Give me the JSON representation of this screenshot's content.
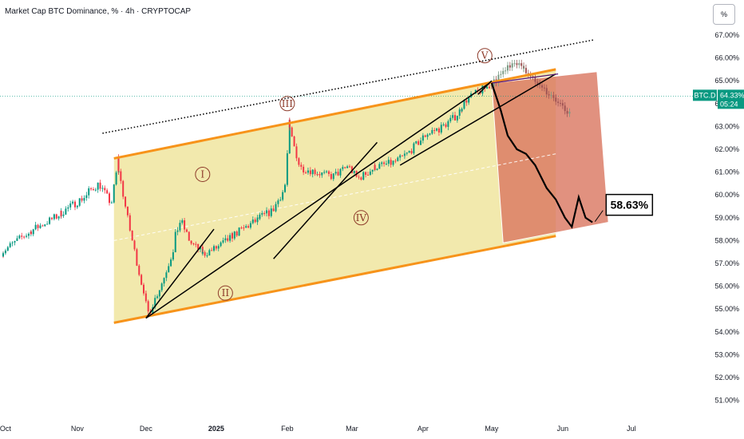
{
  "header": {
    "title": "Market Cap BTC Dominance, % · 4h · CRYPTOCAP",
    "percent_button": "%"
  },
  "price_tag": {
    "symbol": "BTC.D",
    "value": "64.33%",
    "countdown": "05:24",
    "color": "#089981"
  },
  "callout": {
    "label": "58.63%"
  },
  "wave_labels": [
    "I",
    "II",
    "III",
    "IV",
    "V"
  ],
  "colors": {
    "candle_up": "#089981",
    "candle_down": "#f23645",
    "channel_line": "#f7931a",
    "channel_fill": "#e8d76a",
    "projection_fill": "#d9755f",
    "projection_path": "#000000",
    "trend_line": "#000000"
  },
  "chart_data": {
    "type": "candlestick",
    "title": "Market Cap BTC Dominance, % · 4h · CRYPTOCAP",
    "xlabel": "",
    "ylabel": "",
    "ylim": [
      50.5,
      67.4
    ],
    "y_scale": "linear",
    "y_ticks": [
      "51.00%",
      "52.00%",
      "53.00%",
      "54.00%",
      "55.00%",
      "56.00%",
      "57.00%",
      "58.00%",
      "59.00%",
      "60.00%",
      "61.00%",
      "62.00%",
      "63.00%",
      "64.00%",
      "65.00%",
      "66.00%",
      "67.00%"
    ],
    "x_ticks": [
      "Oct",
      "Nov",
      "Dec",
      "2025",
      "Feb",
      "Mar",
      "Apr",
      "May",
      "Jun",
      "Jul"
    ],
    "grid": false,
    "legend": "none",
    "series": [
      {
        "name": "BTC.D",
        "x": [
          "2024-09-30",
          "2024-10-10",
          "2024-10-20",
          "2024-10-28",
          "2024-11-05",
          "2024-11-12",
          "2024-11-17",
          "2024-11-20",
          "2024-11-25",
          "2024-11-30",
          "2024-12-04",
          "2024-12-10",
          "2024-12-18",
          "2024-12-22",
          "2024-12-28",
          "2025-01-03",
          "2025-01-08",
          "2025-01-14",
          "2025-01-20",
          "2025-01-27",
          "2025-02-01",
          "2025-02-03",
          "2025-02-08",
          "2025-02-15",
          "2025-02-22",
          "2025-03-01",
          "2025-03-05",
          "2025-03-12",
          "2025-03-20",
          "2025-03-27",
          "2025-04-04",
          "2025-04-10",
          "2025-04-16",
          "2025-04-22",
          "2025-04-28",
          "2025-05-03",
          "2025-05-06",
          "2025-05-10",
          "2025-05-14",
          "2025-05-18",
          "2025-05-24",
          "2025-05-30",
          "2025-06-05",
          "2025-06-09"
        ],
        "y": [
          57.4,
          58.2,
          58.8,
          59.3,
          59.9,
          60.5,
          59.6,
          61.6,
          58.7,
          56.2,
          54.8,
          56.3,
          58.9,
          57.9,
          57.4,
          57.7,
          58.1,
          58.5,
          58.9,
          59.3,
          60.3,
          63.2,
          61.2,
          61.0,
          60.8,
          61.3,
          60.7,
          61.2,
          61.4,
          61.8,
          62.7,
          62.9,
          63.4,
          64.2,
          64.6,
          64.9,
          65.2,
          65.6,
          65.9,
          65.4,
          64.7,
          64.2,
          63.5,
          63.2
        ]
      },
      {
        "name": "projection",
        "x": [
          "2025-05-01",
          "2025-05-05",
          "2025-05-08",
          "2025-05-12",
          "2025-05-16",
          "2025-05-20",
          "2025-05-25",
          "2025-05-29",
          "2025-06-02",
          "2025-06-05",
          "2025-06-08",
          "2025-06-11",
          "2025-06-14"
        ],
        "y": [
          64.9,
          63.7,
          62.6,
          62.0,
          61.8,
          61.3,
          60.3,
          59.8,
          59.0,
          58.6,
          59.9,
          59.0,
          58.8
        ]
      }
    ],
    "annotations": [
      {
        "text": "I",
        "x": "2024-12-26",
        "y": 60.9
      },
      {
        "text": "II",
        "x": "2025-01-05",
        "y": 55.7
      },
      {
        "text": "III",
        "x": "2025-02-01",
        "y": 64.0
      },
      {
        "text": "IV",
        "x": "2025-03-05",
        "y": 59.0
      },
      {
        "text": "V",
        "x": "2025-04-28",
        "y": 66.1
      },
      {
        "text": "58.63%",
        "x": "2025-06-20",
        "y": 59.6
      }
    ]
  }
}
